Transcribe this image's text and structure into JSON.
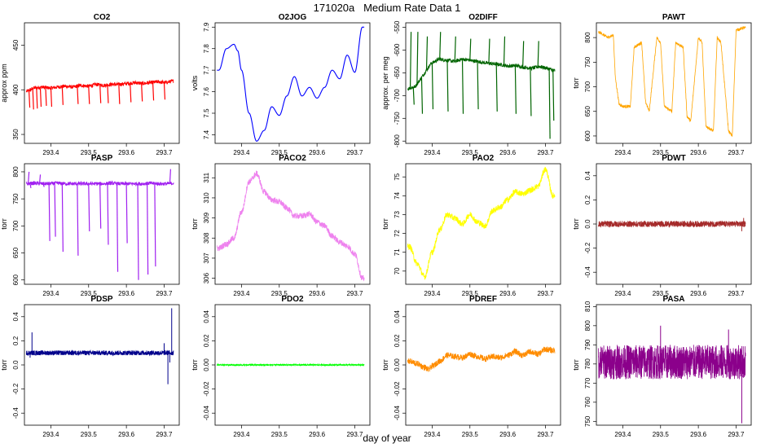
{
  "page": {
    "title": "171020a   Medium Rate Data 1",
    "xlabel": "day of year"
  },
  "chart_data": [
    {
      "type": "line",
      "title": "CO2",
      "ylabel": "approx ppm",
      "xlim": [
        293.33,
        293.74
      ],
      "ylim": [
        340,
        475
      ],
      "xticks": [
        "293.4",
        "293.5",
        "293.6",
        "293.7"
      ],
      "yticks": [
        "350",
        "400",
        "450"
      ],
      "series": [
        {
          "color": "#ff0000",
          "style": "spiky",
          "y": [
            398,
            402,
            403,
            402,
            403,
            404,
            403,
            405,
            404,
            406,
            405,
            406,
            406,
            407,
            408,
            407,
            408,
            409,
            408,
            410
          ],
          "spikes": [
            [
              293.342,
              380
            ],
            [
              293.352,
              378
            ],
            [
              293.362,
              379
            ],
            [
              293.372,
              381
            ],
            [
              293.386,
              382
            ],
            [
              293.4,
              381
            ],
            [
              293.43,
              383
            ],
            [
              293.47,
              384
            ],
            [
              293.5,
              384
            ],
            [
              293.53,
              385
            ],
            [
              293.55,
              385
            ],
            [
              293.58,
              384
            ],
            [
              293.61,
              386
            ],
            [
              293.64,
              387
            ],
            [
              293.67,
              388
            ],
            [
              293.7,
              389
            ],
            [
              293.345,
              398
            ]
          ]
        }
      ]
    },
    {
      "type": "line",
      "title": "O2JOG",
      "ylabel": "volts",
      "xlim": [
        293.33,
        293.74
      ],
      "ylim": [
        7.36,
        7.92
      ],
      "xticks": [
        "293.4",
        "293.5",
        "293.6",
        "293.7"
      ],
      "yticks": [
        "7.4",
        "7.5",
        "7.6",
        "7.7",
        "7.8",
        "7.9"
      ],
      "series": [
        {
          "color": "#0000ff",
          "style": "smooth",
          "x": [
            293.34,
            293.36,
            293.38,
            293.39,
            293.4,
            293.42,
            293.44,
            293.46,
            293.48,
            293.5,
            293.52,
            293.54,
            293.56,
            293.58,
            293.6,
            293.62,
            293.64,
            293.66,
            293.68,
            293.7,
            293.72
          ],
          "y": [
            7.7,
            7.8,
            7.82,
            7.79,
            7.7,
            7.5,
            7.37,
            7.42,
            7.53,
            7.49,
            7.58,
            7.67,
            7.58,
            7.62,
            7.57,
            7.62,
            7.7,
            7.66,
            7.77,
            7.69,
            7.9
          ]
        }
      ]
    },
    {
      "type": "line",
      "title": "O2DIFF",
      "ylabel": "approx. per meg",
      "xlim": [
        293.33,
        293.74
      ],
      "ylim": [
        -805,
        -540
      ],
      "xticks": [
        "293.4",
        "293.5",
        "293.6",
        "293.7"
      ],
      "yticks": [
        "-800",
        "-750",
        "-700",
        "-650",
        "-600",
        "-550"
      ],
      "series": [
        {
          "color": "#006400",
          "style": "spiky",
          "y": [
            -685,
            -680,
            -655,
            -630,
            -620,
            -622,
            -625,
            -620,
            -622,
            -625,
            -628,
            -630,
            -632,
            -635,
            -634,
            -638,
            -640,
            -636,
            -640,
            -645
          ],
          "spikes": [
            [
              293.342,
              -560
            ],
            [
              293.35,
              -720
            ],
            [
              293.36,
              -560
            ],
            [
              293.372,
              -740
            ],
            [
              293.385,
              -570
            ],
            [
              293.4,
              -730
            ],
            [
              293.42,
              -560
            ],
            [
              293.44,
              -735
            ],
            [
              293.46,
              -570
            ],
            [
              293.48,
              -740
            ],
            [
              293.5,
              -575
            ],
            [
              293.52,
              -730
            ],
            [
              293.55,
              -575
            ],
            [
              293.57,
              -735
            ],
            [
              293.59,
              -570
            ],
            [
              293.62,
              -740
            ],
            [
              293.64,
              -580
            ],
            [
              293.66,
              -745
            ],
            [
              293.68,
              -580
            ],
            [
              293.71,
              -795
            ],
            [
              293.72,
              -755
            ]
          ]
        }
      ]
    },
    {
      "type": "line",
      "title": "PAWT",
      "ylabel": "torr",
      "xlim": [
        293.33,
        293.74
      ],
      "ylim": [
        585,
        830
      ],
      "xticks": [
        "293.4",
        "293.5",
        "293.6",
        "293.7"
      ],
      "yticks": [
        "600",
        "650",
        "700",
        "750",
        "800"
      ],
      "series": [
        {
          "color": "#ffa500",
          "style": "steps",
          "x": [
            293.34,
            293.36,
            293.375,
            293.38,
            293.39,
            293.4,
            293.42,
            293.43,
            293.45,
            293.46,
            293.47,
            293.49,
            293.5,
            293.51,
            293.53,
            293.54,
            293.56,
            293.57,
            293.58,
            293.6,
            293.61,
            293.62,
            293.64,
            293.65,
            293.66,
            293.68,
            293.69,
            293.7,
            293.72
          ],
          "y": [
            810,
            800,
            805,
            720,
            665,
            660,
            660,
            780,
            790,
            670,
            650,
            800,
            790,
            660,
            650,
            790,
            780,
            640,
            630,
            800,
            790,
            620,
            610,
            800,
            790,
            610,
            600,
            815,
            820
          ]
        }
      ]
    },
    {
      "type": "line",
      "title": "PASP",
      "ylabel": "torr",
      "xlim": [
        293.33,
        293.74
      ],
      "ylim": [
        592,
        815
      ],
      "xticks": [
        "293.4",
        "293.5",
        "293.6",
        "293.7"
      ],
      "yticks": [
        "600",
        "650",
        "700",
        "750",
        "800"
      ],
      "series": [
        {
          "color": "#a020f0",
          "style": "spiky",
          "y": [
            778,
            779,
            778,
            778,
            779,
            778,
            778,
            778,
            778,
            778,
            778,
            779,
            778,
            778,
            778,
            778,
            779,
            778,
            778,
            779
          ],
          "spikes": [
            [
              293.34,
              800
            ],
            [
              293.345,
              770
            ],
            [
              293.37,
              795
            ],
            [
              293.38,
              772
            ],
            [
              293.395,
              672
            ],
            [
              293.41,
              680
            ],
            [
              293.43,
              652
            ],
            [
              293.47,
              645
            ],
            [
              293.5,
              690
            ],
            [
              293.53,
              695
            ],
            [
              293.55,
              665
            ],
            [
              293.575,
              615
            ],
            [
              293.6,
              668
            ],
            [
              293.63,
              600
            ],
            [
              293.655,
              610
            ],
            [
              293.675,
              625
            ],
            [
              293.715,
              805
            ]
          ]
        }
      ]
    },
    {
      "type": "line",
      "title": "PACO2",
      "ylabel": "torr",
      "xlim": [
        293.33,
        293.74
      ],
      "ylim": [
        305.7,
        311.7
      ],
      "xticks": [
        "293.4",
        "293.5",
        "293.6",
        "293.7"
      ],
      "yticks": [
        "306",
        "307",
        "308",
        "309",
        "310",
        "311"
      ],
      "series": [
        {
          "color": "#ee82ee",
          "style": "noisy",
          "x": [
            293.34,
            293.36,
            293.38,
            293.4,
            293.42,
            293.44,
            293.46,
            293.48,
            293.5,
            293.52,
            293.54,
            293.56,
            293.58,
            293.6,
            293.62,
            293.64,
            293.66,
            293.68,
            293.7,
            293.72
          ],
          "y": [
            307.5,
            307.7,
            308.0,
            309.3,
            310.8,
            311.2,
            310.3,
            309.9,
            309.8,
            309.5,
            309.1,
            309.1,
            309.2,
            308.8,
            308.6,
            308.1,
            307.8,
            307.6,
            307.2,
            306.0
          ]
        }
      ]
    },
    {
      "type": "line",
      "title": "PAO2",
      "ylabel": "torr",
      "xlim": [
        293.33,
        293.74
      ],
      "ylim": [
        69.3,
        75.7
      ],
      "xticks": [
        "293.4",
        "293.5",
        "293.6",
        "293.7"
      ],
      "yticks": [
        "70",
        "71",
        "72",
        "73",
        "74",
        "75"
      ],
      "series": [
        {
          "color": "#ffff00",
          "style": "noisy",
          "x": [
            293.34,
            293.36,
            293.38,
            293.4,
            293.42,
            293.44,
            293.46,
            293.48,
            293.5,
            293.52,
            293.54,
            293.56,
            293.58,
            293.6,
            293.62,
            293.64,
            293.66,
            293.68,
            293.7,
            293.72
          ],
          "y": [
            71.3,
            70.4,
            69.7,
            71.0,
            72.2,
            73.0,
            72.8,
            72.5,
            73.0,
            72.6,
            72.4,
            73.2,
            73.4,
            73.8,
            74.2,
            74.1,
            74.3,
            74.5,
            75.4,
            74.0
          ]
        }
      ]
    },
    {
      "type": "line",
      "title": "PDWT",
      "ylabel": "torr",
      "xlim": [
        293.33,
        293.74
      ],
      "ylim": [
        -0.5,
        0.5
      ],
      "xticks": [
        "293.4",
        "293.5",
        "293.6",
        "293.7"
      ],
      "yticks": [
        "-0.4",
        "-0.2",
        "0.0",
        "0.2",
        "0.4"
      ],
      "series": [
        {
          "color": "#a52a2a",
          "style": "band",
          "level": 0.0,
          "band": 0.025,
          "spikes": [
            [
              293.715,
              -0.06
            ],
            [
              293.72,
              0.05
            ]
          ]
        }
      ]
    },
    {
      "type": "line",
      "title": "PDSP",
      "ylabel": "torr",
      "xlim": [
        293.33,
        293.74
      ],
      "ylim": [
        -0.5,
        0.5
      ],
      "xticks": [
        "293.4",
        "293.5",
        "293.6",
        "293.7"
      ],
      "yticks": [
        "-0.4",
        "-0.2",
        "0.0",
        "0.2",
        "0.4"
      ],
      "series": [
        {
          "color": "#00008b",
          "style": "band",
          "level": 0.1,
          "band": 0.02,
          "spikes": [
            [
              293.345,
              0.06
            ],
            [
              293.35,
              0.27
            ],
            [
              293.7,
              0.18
            ],
            [
              293.71,
              -0.16
            ],
            [
              293.72,
              0.47
            ],
            [
              293.715,
              0.02
            ]
          ]
        }
      ]
    },
    {
      "type": "line",
      "title": "PDO2",
      "ylabel": "torr",
      "xlim": [
        293.33,
        293.74
      ],
      "ylim": [
        -0.05,
        0.05
      ],
      "xticks": [
        "293.4",
        "293.5",
        "293.6",
        "293.7"
      ],
      "yticks": [
        "-0.04",
        "-0.02",
        "0.00",
        "0.02",
        "0.04"
      ],
      "series": [
        {
          "color": "#00ff00",
          "style": "band",
          "level": 0.0,
          "band": 0.0006,
          "spikes": [
            [
              293.72,
              0.001
            ]
          ]
        }
      ]
    },
    {
      "type": "line",
      "title": "PDREF",
      "ylabel": "torr",
      "xlim": [
        293.33,
        293.74
      ],
      "ylim": [
        -0.05,
        0.05
      ],
      "xticks": [
        "293.4",
        "293.5",
        "293.6",
        "293.7"
      ],
      "yticks": [
        "-0.04",
        "-0.02",
        "0.00",
        "0.02",
        "0.04"
      ],
      "series": [
        {
          "color": "#ff8c00",
          "style": "noisy",
          "x": [
            293.34,
            293.36,
            293.38,
            293.39,
            293.4,
            293.42,
            293.44,
            293.46,
            293.48,
            293.5,
            293.52,
            293.54,
            293.56,
            293.58,
            293.6,
            293.62,
            293.64,
            293.66,
            293.68,
            293.7,
            293.72
          ],
          "y": [
            0.003,
            0.001,
            -0.002,
            -0.004,
            -0.001,
            0.003,
            0.008,
            0.007,
            0.006,
            0.009,
            0.007,
            0.005,
            0.007,
            0.006,
            0.008,
            0.011,
            0.008,
            0.011,
            0.009,
            0.013,
            0.012
          ]
        }
      ]
    },
    {
      "type": "line",
      "title": "PASA",
      "ylabel": "torr",
      "xlim": [
        293.33,
        293.74
      ],
      "ylim": [
        748,
        811
      ],
      "xticks": [
        "293.4",
        "293.5",
        "293.6",
        "293.7"
      ],
      "yticks": [
        "750",
        "760",
        "770",
        "780",
        "790",
        "800",
        "810"
      ],
      "series": [
        {
          "color": "#8b008b",
          "style": "band",
          "level": 781,
          "band": 9,
          "spikes": [
            [
              293.715,
              749
            ],
            [
              293.68,
              798
            ],
            [
              293.5,
              800
            ]
          ]
        }
      ]
    }
  ]
}
